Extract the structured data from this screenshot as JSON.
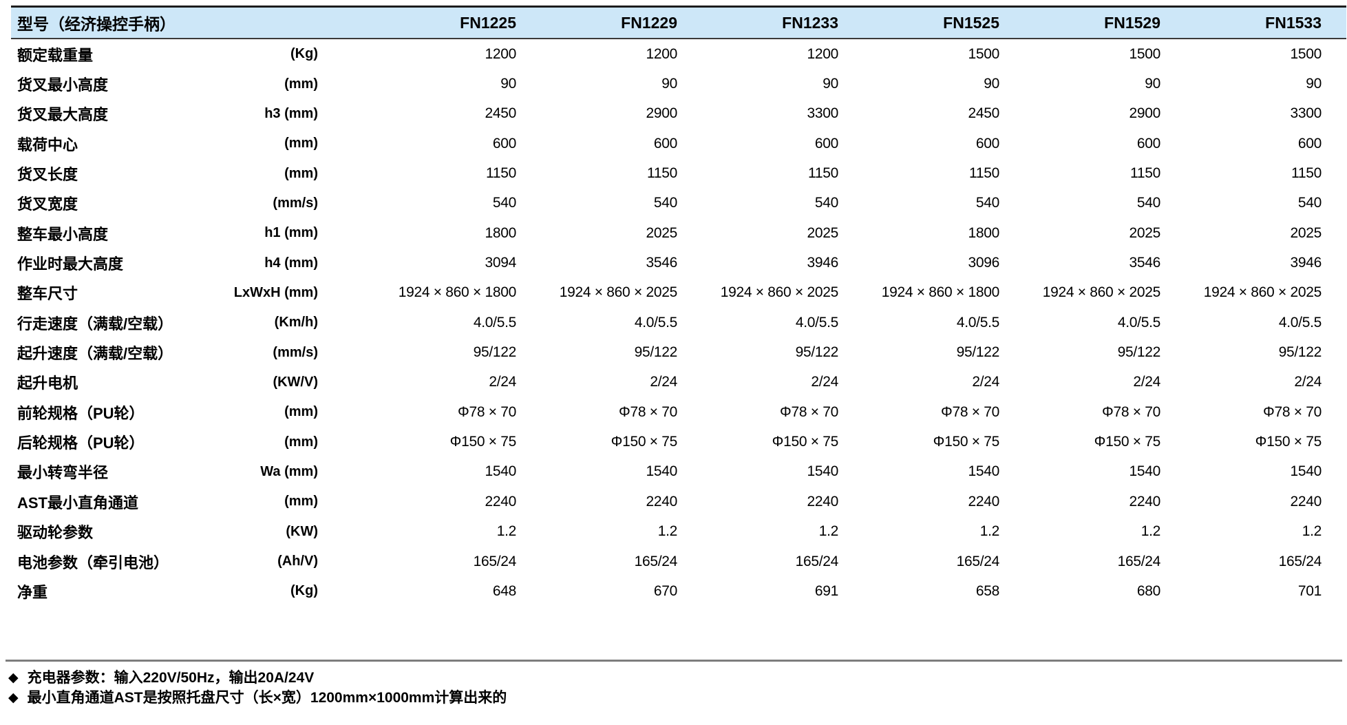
{
  "header": {
    "title": "型号（经济操控手柄）",
    "models": [
      "FN1225",
      "FN1229",
      "FN1233",
      "FN1525",
      "FN1529",
      "FN1533"
    ],
    "bg_color": "#cde7f8"
  },
  "rows": [
    {
      "label": "额定载重量",
      "unit": "(Kg)",
      "values": [
        "1200",
        "1200",
        "1200",
        "1500",
        "1500",
        "1500"
      ]
    },
    {
      "label": "货叉最小高度",
      "unit": "(mm)",
      "values": [
        "90",
        "90",
        "90",
        "90",
        "90",
        "90"
      ]
    },
    {
      "label": "货叉最大高度",
      "unit": "h3 (mm)",
      "values": [
        "2450",
        "2900",
        "3300",
        "2450",
        "2900",
        "3300"
      ]
    },
    {
      "label": "载荷中心",
      "unit": "(mm)",
      "values": [
        "600",
        "600",
        "600",
        "600",
        "600",
        "600"
      ]
    },
    {
      "label": "货叉长度",
      "unit": "(mm)",
      "values": [
        "1150",
        "1150",
        "1150",
        "1150",
        "1150",
        "1150"
      ]
    },
    {
      "label": "货叉宽度",
      "unit": "(mm/s)",
      "values": [
        "540",
        "540",
        "540",
        "540",
        "540",
        "540"
      ]
    },
    {
      "label": "整车最小高度",
      "unit": "h1 (mm)",
      "values": [
        "1800",
        "2025",
        "2025",
        "1800",
        "2025",
        "2025"
      ]
    },
    {
      "label": "作业时最大高度",
      "unit": "h4 (mm)",
      "values": [
        "3094",
        "3546",
        "3946",
        "3096",
        "3546",
        "3946"
      ]
    },
    {
      "label": "整车尺寸",
      "unit": "LxWxH (mm)",
      "values": [
        "1924 × 860 × 1800",
        "1924 × 860 × 2025",
        "1924 × 860 × 2025",
        "1924 × 860 × 1800",
        "1924 × 860 × 2025",
        "1924 × 860 × 2025"
      ]
    },
    {
      "label": "行走速度（满载/空载）",
      "unit": "(Km/h)",
      "values": [
        "4.0/5.5",
        "4.0/5.5",
        "4.0/5.5",
        "4.0/5.5",
        "4.0/5.5",
        "4.0/5.5"
      ]
    },
    {
      "label": "起升速度（满载/空载）",
      "unit": "(mm/s)",
      "values": [
        "95/122",
        "95/122",
        "95/122",
        "95/122",
        "95/122",
        "95/122"
      ]
    },
    {
      "label": "起升电机",
      "unit": "(KW/V)",
      "values": [
        "2/24",
        "2/24",
        "2/24",
        "2/24",
        "2/24",
        "2/24"
      ]
    },
    {
      "label": "前轮规格（PU轮）",
      "unit": "(mm)",
      "values": [
        "Φ78 × 70",
        "Φ78 × 70",
        "Φ78 × 70",
        "Φ78 × 70",
        "Φ78 × 70",
        "Φ78 × 70"
      ]
    },
    {
      "label": "后轮规格（PU轮）",
      "unit": "(mm)",
      "values": [
        "Φ150 × 75",
        "Φ150 × 75",
        "Φ150 × 75",
        "Φ150 × 75",
        "Φ150 × 75",
        "Φ150 × 75"
      ]
    },
    {
      "label": "最小转弯半径",
      "unit": "Wa (mm)",
      "values": [
        "1540",
        "1540",
        "1540",
        "1540",
        "1540",
        "1540"
      ]
    },
    {
      "label": "AST最小直角通道",
      "unit": "(mm)",
      "values": [
        "2240",
        "2240",
        "2240",
        "2240",
        "2240",
        "2240"
      ]
    },
    {
      "label": "驱动轮参数",
      "unit": "(KW)",
      "values": [
        "1.2",
        "1.2",
        "1.2",
        "1.2",
        "1.2",
        "1.2"
      ]
    },
    {
      "label": "电池参数（牵引电池）",
      "unit": "(Ah/V)",
      "values": [
        "165/24",
        "165/24",
        "165/24",
        "165/24",
        "165/24",
        "165/24"
      ]
    },
    {
      "label": "净重",
      "unit": "(Kg)",
      "values": [
        "648",
        "670",
        "691",
        "658",
        "680",
        "701"
      ]
    }
  ],
  "footnote_bullet": "◆",
  "footnotes": [
    "充电器参数：输入220V/50Hz，输出20A/24V",
    "最小直角通道AST是按照托盘尺寸（长×宽）1200mm×1000mm计算出来的"
  ],
  "colors": {
    "header_bg": "#cde7f8",
    "top_rule": "#1c1c1c",
    "header_rule": "#3a3a3a",
    "bottom_rule": "#7d7d7d",
    "text": "#000000"
  }
}
